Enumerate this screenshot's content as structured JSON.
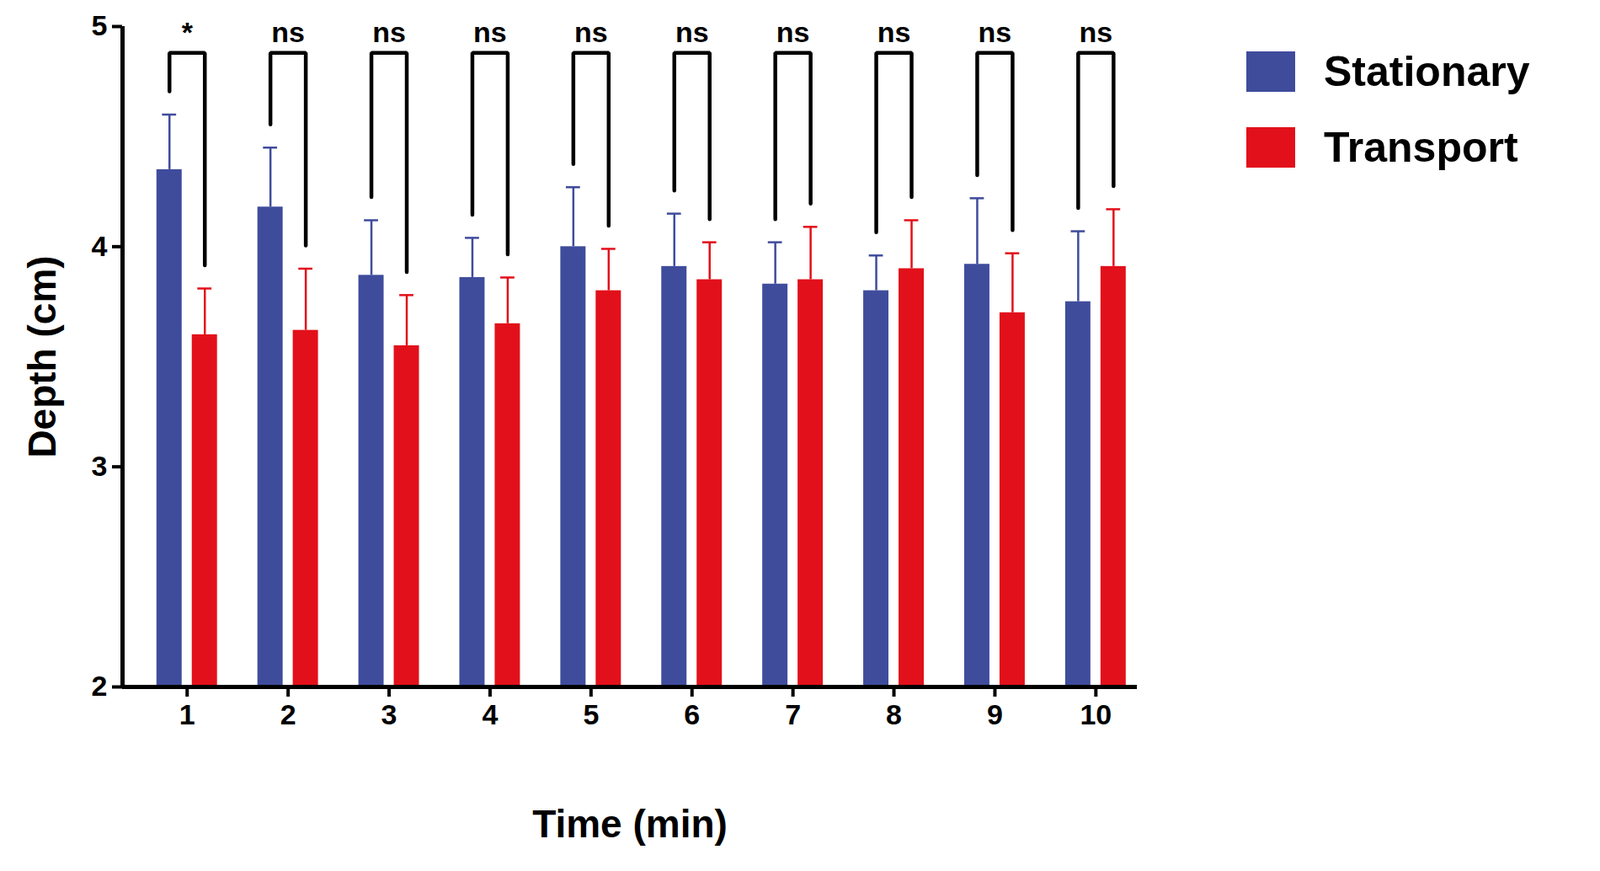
{
  "chart_data": {
    "type": "bar",
    "x_label": "Time (min)",
    "y_label": "Depth (cm)",
    "categories": [
      "1",
      "2",
      "3",
      "4",
      "5",
      "6",
      "7",
      "8",
      "9",
      "10"
    ],
    "series": [
      {
        "name": "Stationary",
        "color": "#3f4c9c",
        "values": [
          4.35,
          4.18,
          3.87,
          3.86,
          4.0,
          3.91,
          3.83,
          3.8,
          3.92,
          3.75
        ],
        "error": [
          0.25,
          0.27,
          0.25,
          0.18,
          0.27,
          0.24,
          0.19,
          0.16,
          0.3,
          0.32
        ]
      },
      {
        "name": "Transport",
        "color": "#e2101a",
        "values": [
          3.6,
          3.62,
          3.55,
          3.65,
          3.8,
          3.85,
          3.85,
          3.9,
          3.7,
          3.91
        ],
        "error": [
          0.21,
          0.28,
          0.23,
          0.21,
          0.19,
          0.17,
          0.24,
          0.22,
          0.27,
          0.26
        ]
      }
    ],
    "annotations": [
      "*",
      "ns",
      "ns",
      "ns",
      "ns",
      "ns",
      "ns",
      "ns",
      "ns",
      "ns"
    ],
    "ylim": [
      2,
      5
    ],
    "yticks": [
      2,
      3,
      4,
      5
    ],
    "legend": "right"
  }
}
